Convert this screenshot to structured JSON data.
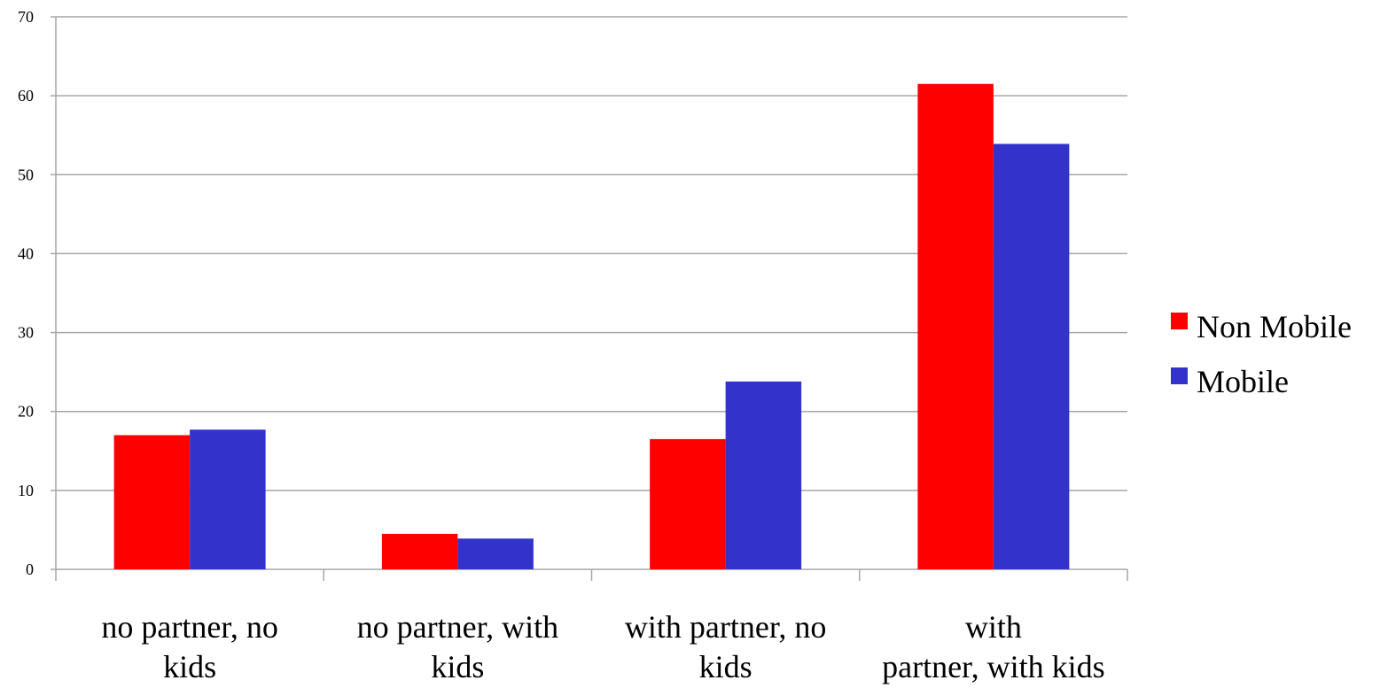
{
  "chart_data": {
    "type": "bar",
    "categories": [
      [
        "no partner, no",
        "kids"
      ],
      [
        "no partner, with",
        "kids"
      ],
      [
        "with partner, no",
        "kids"
      ],
      [
        "with",
        "partner, with kids"
      ]
    ],
    "series": [
      {
        "name": "Non Mobile",
        "color": "#ff0000",
        "values": [
          17,
          4.5,
          16.5,
          61.5
        ]
      },
      {
        "name": "Mobile",
        "color": "#3333cc",
        "values": [
          17.7,
          3.9,
          23.8,
          53.9
        ]
      }
    ],
    "ylim": [
      0,
      70
    ],
    "yticks": [
      0,
      10,
      20,
      30,
      40,
      50,
      60,
      70
    ],
    "grid": true,
    "legend": "right",
    "title": "",
    "xlabel": "",
    "ylabel": ""
  }
}
